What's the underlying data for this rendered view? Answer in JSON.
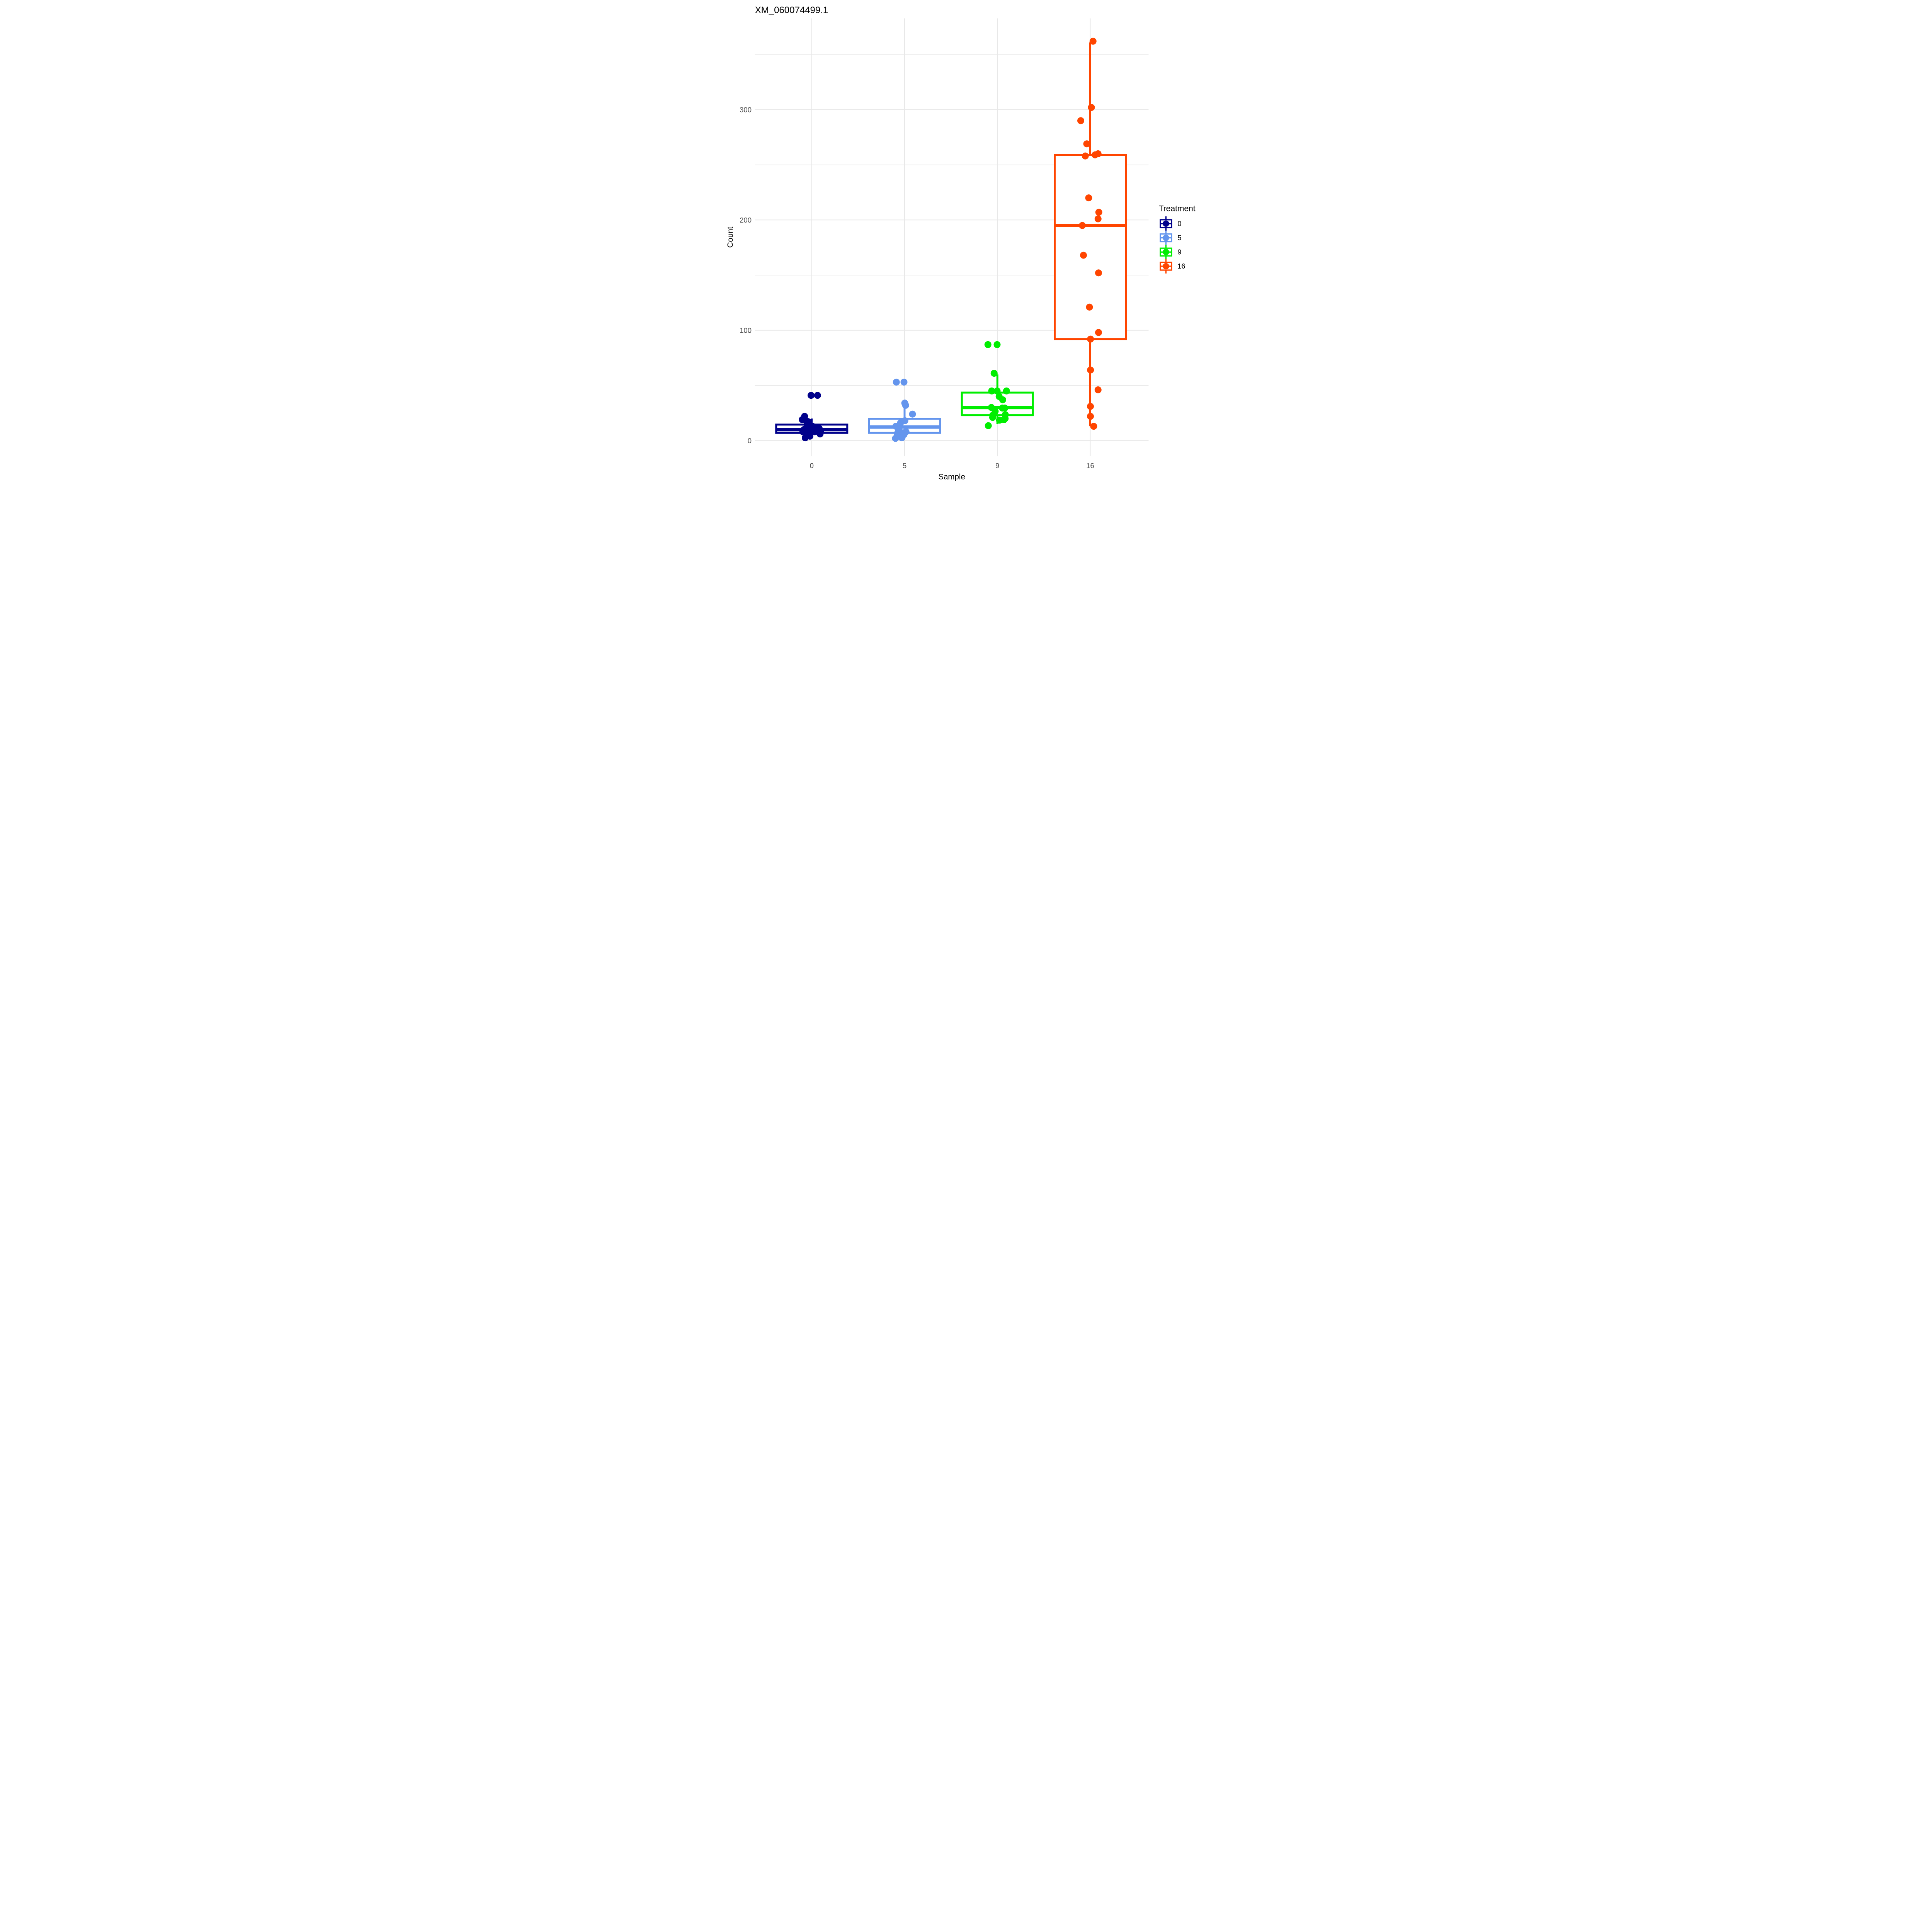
{
  "page": {
    "background": "#FFFFFF"
  },
  "chart_data": {
    "type": "boxplot",
    "title": "XM_060074499.1",
    "xlabel": "Sample",
    "ylabel": "Count",
    "categories": [
      "0",
      "5",
      "9",
      "16"
    ],
    "legend": {
      "title": "Treatment",
      "entries": [
        {
          "label": "0",
          "color": "#00008B"
        },
        {
          "label": "5",
          "color": "#6495ED"
        },
        {
          "label": "9",
          "color": "#00EE00"
        },
        {
          "label": "16",
          "color": "#FF4500"
        }
      ]
    },
    "y_axis": {
      "ticks": [
        0,
        100,
        200,
        300
      ],
      "minor_ticks": [
        50,
        150,
        250,
        350
      ],
      "range": [
        -14,
        383
      ],
      "grid": true
    },
    "style": {
      "grid_color": "#E8E8E8",
      "tick_label_color": "#4D4D4D",
      "text_color": "#000000",
      "panel_bg": "#FFFFFF"
    },
    "groups": [
      {
        "category": "0",
        "treatment": "0",
        "color": "#00008B",
        "box": {
          "whisker_low": 2.5,
          "q1": 7,
          "median": 10,
          "q3": 14.5,
          "whisker_high": 20
        },
        "points": [
          [
            -7,
            41
          ],
          [
            60,
            41
          ],
          [
            -74,
            22
          ],
          [
            -98,
            19
          ],
          [
            -57,
            18
          ],
          [
            -34,
            17
          ],
          [
            -48,
            14
          ],
          [
            7,
            13
          ],
          [
            60,
            12
          ],
          [
            -31,
            12
          ],
          [
            77,
            11
          ],
          [
            19,
            11
          ],
          [
            -80,
            10
          ],
          [
            -16,
            10
          ],
          [
            92,
            9
          ],
          [
            45,
            9
          ],
          [
            -92,
            8
          ],
          [
            30,
            8
          ],
          [
            -70,
            7
          ],
          [
            86,
            6
          ],
          [
            -19,
            4
          ],
          [
            -67,
            2.5
          ]
        ]
      },
      {
        "category": "5",
        "treatment": "5",
        "color": "#6495ED",
        "box": {
          "whisker_low": 2,
          "q1": 7,
          "median": 12.3,
          "q3": 19.8,
          "whisker_high": 30
        },
        "points": [
          [
            -85,
            53
          ],
          [
            -6,
            53
          ],
          [
            2,
            34
          ],
          [
            11,
            32
          ],
          [
            82,
            24
          ],
          [
            3,
            18
          ],
          [
            -42,
            16
          ],
          [
            -90,
            13
          ],
          [
            -60,
            10
          ],
          [
            15,
            8
          ],
          [
            -69,
            7.5
          ],
          [
            -19,
            7
          ],
          [
            -6,
            5.5
          ],
          [
            -76,
            5
          ],
          [
            -28,
            2.5
          ],
          [
            -94,
            2
          ]
        ]
      },
      {
        "category": "9",
        "treatment": "9",
        "color": "#00EE00",
        "box": {
          "whisker_low": 15,
          "q1": 23,
          "median": 30,
          "q3": 43.5,
          "whisker_high": 60
        },
        "points": [
          [
            -98,
            87
          ],
          [
            -3,
            87
          ],
          [
            -34,
            61
          ],
          [
            -59,
            45
          ],
          [
            -3,
            45
          ],
          [
            94,
            45
          ],
          [
            18,
            40
          ],
          [
            55,
            37
          ],
          [
            -62,
            30
          ],
          [
            52,
            29.5
          ],
          [
            77,
            29.5
          ],
          [
            -23,
            26.5
          ],
          [
            -48,
            23
          ],
          [
            82,
            23.5
          ],
          [
            -49,
            21
          ],
          [
            80,
            20
          ],
          [
            69,
            19
          ],
          [
            22,
            18.5
          ],
          [
            -94,
            13.5
          ]
        ]
      },
      {
        "category": "16",
        "treatment": "16",
        "color": "#FF4500",
        "box": {
          "whisker_low": 13,
          "q1": 92,
          "median": 195,
          "q3": 259,
          "whisker_high": 361
        },
        "points": [
          [
            29,
            362
          ],
          [
            12,
            302
          ],
          [
            -98,
            290
          ],
          [
            -36,
            269
          ],
          [
            81,
            260
          ],
          [
            50,
            259
          ],
          [
            -51,
            258
          ],
          [
            -16,
            220
          ],
          [
            89,
            207
          ],
          [
            81,
            201
          ],
          [
            -82,
            195
          ],
          [
            -70,
            168
          ],
          [
            86,
            152
          ],
          [
            -8,
            121
          ],
          [
            86,
            98
          ],
          [
            3,
            92
          ],
          [
            3,
            64
          ],
          [
            81,
            46
          ],
          [
            2,
            31
          ],
          [
            2,
            22
          ],
          [
            36,
            13
          ]
        ]
      }
    ]
  }
}
